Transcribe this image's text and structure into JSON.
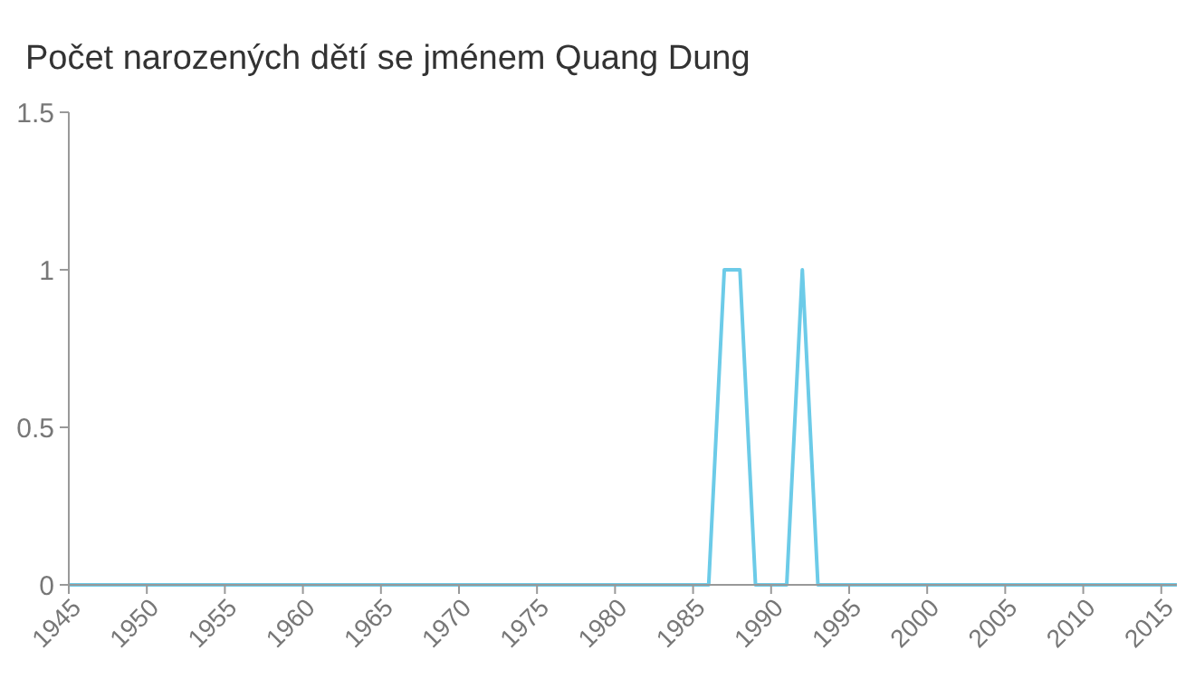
{
  "chart_data": {
    "type": "line",
    "title": "Počet narozených dětí se jménem Quang Dung",
    "x": [
      1945,
      1946,
      1947,
      1948,
      1949,
      1950,
      1951,
      1952,
      1953,
      1954,
      1955,
      1956,
      1957,
      1958,
      1959,
      1960,
      1961,
      1962,
      1963,
      1964,
      1965,
      1966,
      1967,
      1968,
      1969,
      1970,
      1971,
      1972,
      1973,
      1974,
      1975,
      1976,
      1977,
      1978,
      1979,
      1980,
      1981,
      1982,
      1983,
      1984,
      1985,
      1986,
      1987,
      1988,
      1989,
      1990,
      1991,
      1992,
      1993,
      1994,
      1995,
      1996,
      1997,
      1998,
      1999,
      2000,
      2001,
      2002,
      2003,
      2004,
      2005,
      2006,
      2007,
      2008,
      2009,
      2010,
      2011,
      2012,
      2013,
      2014,
      2015,
      2016
    ],
    "series": [
      {
        "color": "#6ccbe8",
        "values": [
          0,
          0,
          0,
          0,
          0,
          0,
          0,
          0,
          0,
          0,
          0,
          0,
          0,
          0,
          0,
          0,
          0,
          0,
          0,
          0,
          0,
          0,
          0,
          0,
          0,
          0,
          0,
          0,
          0,
          0,
          0,
          0,
          0,
          0,
          0,
          0,
          0,
          0,
          0,
          0,
          0,
          0,
          1,
          1,
          0,
          0,
          0,
          1,
          0,
          0,
          0,
          0,
          0,
          0,
          0,
          0,
          0,
          0,
          0,
          0,
          0,
          0,
          0,
          0,
          0,
          0,
          0,
          0,
          0,
          0,
          0,
          0
        ]
      }
    ],
    "xlim": [
      1945,
      2016
    ],
    "xticks": [
      1945,
      1950,
      1955,
      1960,
      1965,
      1970,
      1975,
      1980,
      1985,
      1990,
      1995,
      2000,
      2005,
      2010,
      2015
    ],
    "ylim": [
      0,
      1.5
    ],
    "yticks": [
      0,
      0.5,
      1,
      1.5
    ],
    "grid": false,
    "marker": "none",
    "line_style": "solid"
  }
}
